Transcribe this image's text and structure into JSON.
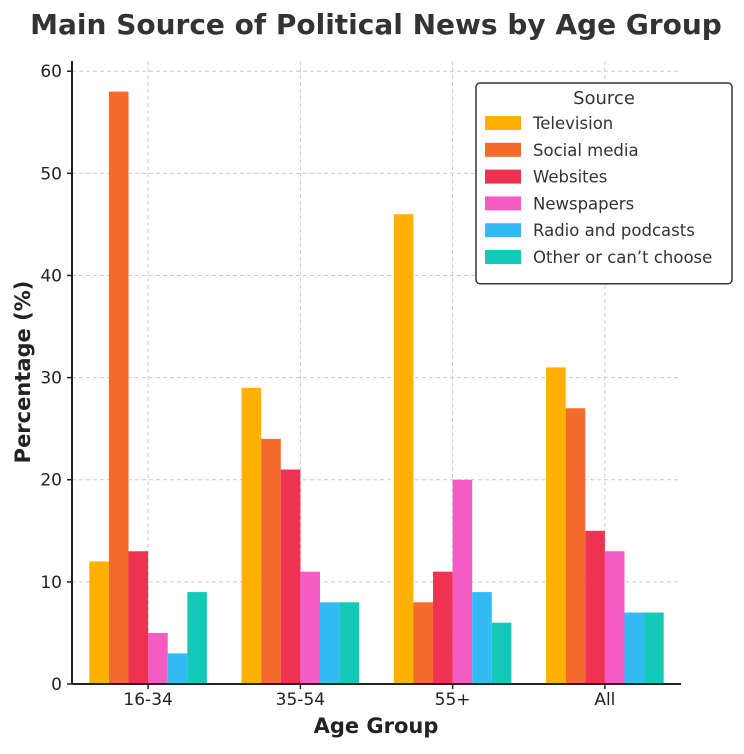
{
  "chart_data": {
    "type": "bar",
    "title": "Main Source of Political News by Age Group",
    "xlabel": "Age Group",
    "ylabel": "Percentage (%)",
    "categories": [
      "16-34",
      "35-54",
      "55+",
      "All"
    ],
    "ylim": [
      0,
      61
    ],
    "yticks": [
      0,
      10,
      20,
      30,
      40,
      50,
      60
    ],
    "grid": true,
    "legend": {
      "title": "Source",
      "position": "top-right"
    },
    "series": [
      {
        "name": "Television",
        "color": "#FFB000",
        "values": [
          12,
          29,
          46,
          31
        ]
      },
      {
        "name": "Social media",
        "color": "#F26B2A",
        "values": [
          58,
          24,
          8,
          27
        ]
      },
      {
        "name": "Websites",
        "color": "#EE3352",
        "values": [
          13,
          21,
          11,
          15
        ]
      },
      {
        "name": "Newspapers",
        "color": "#F45BC3",
        "values": [
          5,
          11,
          20,
          13
        ]
      },
      {
        "name": "Radio and podcasts",
        "color": "#33BBF4",
        "values": [
          3,
          8,
          9,
          7
        ]
      },
      {
        "name": "Other or can’t choose",
        "color": "#14C9B8",
        "values": [
          9,
          8,
          6,
          7
        ]
      }
    ]
  }
}
